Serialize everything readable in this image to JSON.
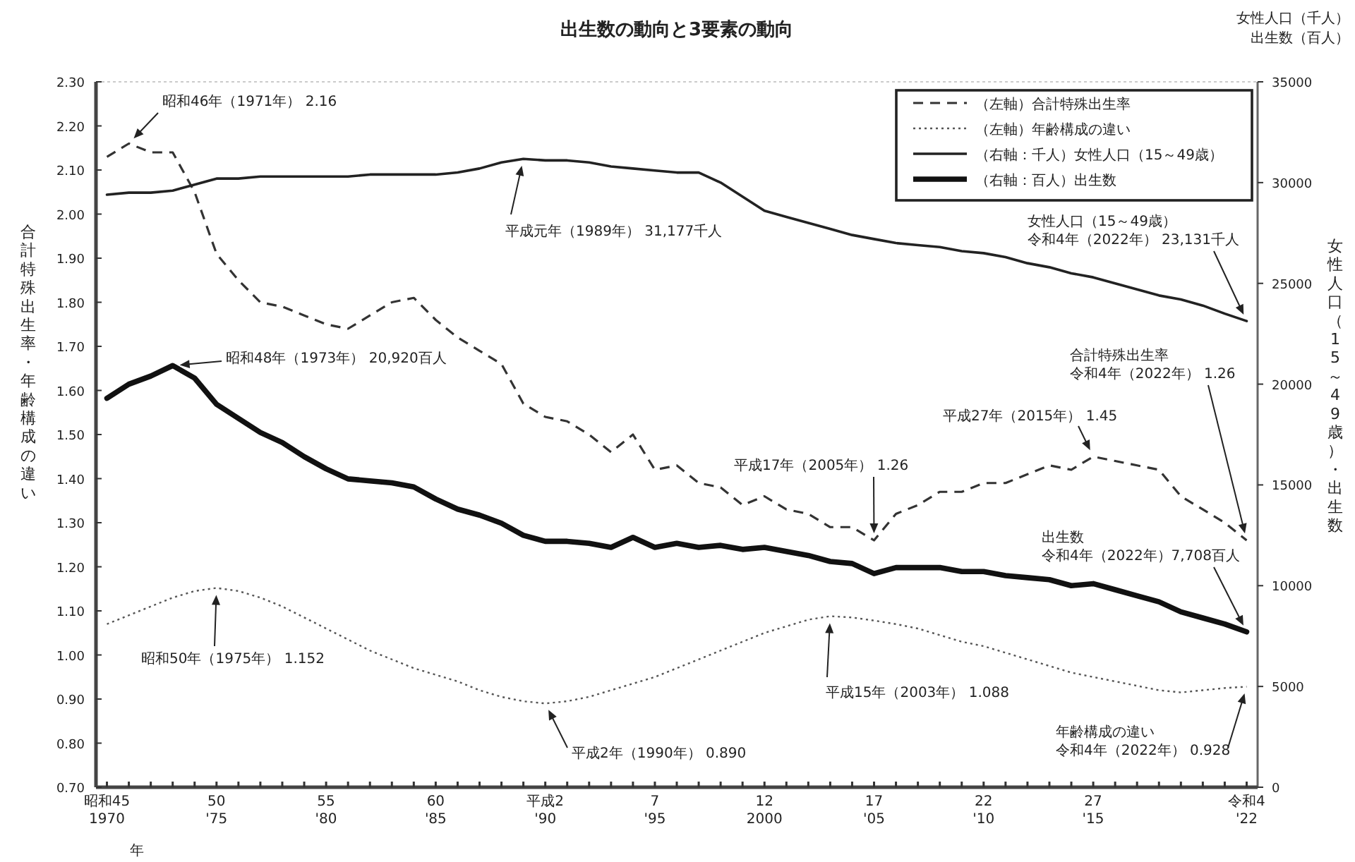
{
  "chart_data": {
    "type": "line",
    "title": "出生数の動向と3要素の動向",
    "ylabel": "合計特殊出生率・年齢構成の違い",
    "y2label": "女性人口（15～49歳）・出生数",
    "annotations": [
      "昭和46年（1971年） 2.16",
      "昭和48年（1973年） 20,920百人",
      "平成元年（1989年） 31,177千人",
      "女性人口（15～49歳）",
      "令和4年（2022年） 23,131千人",
      "合計特殊出生率",
      "令和4年（2022年） 1.26",
      "平成27年（2015年） 1.45",
      "平成17年（2005年） 1.26",
      "出生数",
      "令和4年（2022年）7,708百人",
      "昭和50年（1975年） 1.152",
      "平成2年（1990年） 0.890",
      "平成15年（2003年） 1.088",
      "年齢構成の違い",
      "令和4年（2022年） 0.928",
      "女性人口（千人）",
      "出生数（百人）",
      "年"
    ],
    "categories": [
      "昭和45\n1970",
      null,
      null,
      null,
      null,
      "50\n'75",
      null,
      null,
      null,
      null,
      "55\n'80",
      null,
      null,
      null,
      null,
      "60\n'85",
      null,
      null,
      null,
      null,
      "平成2\n'90",
      null,
      null,
      null,
      null,
      "7\n'95",
      null,
      null,
      null,
      null,
      "12\n2000",
      null,
      null,
      null,
      null,
      "17\n'05",
      null,
      null,
      null,
      null,
      "22\n'10",
      null,
      null,
      null,
      null,
      "27\n'15",
      null,
      null,
      null,
      null,
      null,
      null,
      "令和4\n'22"
    ],
    "ylim": [
      0.7,
      2.3
    ],
    "yticks": [
      {
        "value": 0.7,
        "label": "0.70"
      },
      {
        "value": 0.8,
        "label": "0.80"
      },
      {
        "value": 0.9,
        "label": "0.90"
      },
      {
        "value": 1.0,
        "label": "1.00"
      },
      {
        "value": 1.1,
        "label": "1.10"
      },
      {
        "value": 1.2,
        "label": "1.20"
      },
      {
        "value": 1.3,
        "label": "1.30"
      },
      {
        "value": 1.4,
        "label": "1.40"
      },
      {
        "value": 1.5,
        "label": "1.50"
      },
      {
        "value": 1.6,
        "label": "1.60"
      },
      {
        "value": 1.7,
        "label": "1.70"
      },
      {
        "value": 1.8,
        "label": "1.80"
      },
      {
        "value": 1.9,
        "label": "1.90"
      },
      {
        "value": 2.0,
        "label": "2.00"
      },
      {
        "value": 2.1,
        "label": "2.10"
      },
      {
        "value": 2.2,
        "label": "2.20"
      },
      {
        "value": 2.3,
        "label": "2.30"
      }
    ],
    "y2lim": [
      0,
      35000
    ],
    "y2ticks": [
      0,
      5000,
      10000,
      15000,
      20000,
      25000,
      30000,
      35000
    ],
    "grid": false,
    "legend": "top right",
    "marker": "none",
    "series": [
      {
        "name": "（左軸）合計特殊出生率",
        "color": "#333333",
        "line_style": "dashed",
        "values": [
          2.13,
          2.16,
          2.14,
          2.14,
          2.05,
          1.91,
          1.85,
          1.8,
          1.79,
          1.77,
          1.75,
          1.74,
          1.77,
          1.8,
          1.81,
          1.76,
          1.72,
          1.69,
          1.66,
          1.57,
          1.54,
          1.53,
          1.5,
          1.46,
          1.5,
          1.42,
          1.43,
          1.39,
          1.38,
          1.34,
          1.36,
          1.33,
          1.32,
          1.29,
          1.29,
          1.26,
          1.32,
          1.34,
          1.37,
          1.37,
          1.39,
          1.39,
          1.41,
          1.43,
          1.42,
          1.45,
          1.44,
          1.43,
          1.42,
          1.36,
          1.33,
          1.3,
          1.26
        ]
      },
      {
        "name": "（左軸）年齢構成の違い",
        "color": "#555555",
        "line_style": "dotted",
        "values": [
          1.07,
          1.09,
          1.11,
          1.13,
          1.145,
          1.152,
          1.145,
          1.13,
          1.11,
          1.085,
          1.06,
          1.035,
          1.01,
          0.99,
          0.97,
          0.955,
          0.94,
          0.92,
          0.905,
          0.895,
          0.89,
          0.895,
          0.905,
          0.92,
          0.935,
          0.95,
          0.97,
          0.99,
          1.01,
          1.03,
          1.05,
          1.065,
          1.08,
          1.088,
          1.085,
          1.078,
          1.07,
          1.06,
          1.045,
          1.03,
          1.02,
          1.005,
          0.99,
          0.975,
          0.96,
          0.95,
          0.94,
          0.93,
          0.92,
          0.915,
          0.92,
          0.925,
          0.928
        ]
      },
      {
        "name": "（右軸：千人）女性人口（15～49歳）",
        "color": "#222222",
        "line_style": "solid",
        "axis": "y2",
        "values": [
          29400,
          29500,
          29500,
          29600,
          29900,
          30200,
          30200,
          30300,
          30300,
          30300,
          30300,
          30300,
          30400,
          30400,
          30400,
          30400,
          30500,
          30700,
          31000,
          31177,
          31100,
          31100,
          31000,
          30800,
          30700,
          30600,
          30500,
          30500,
          30000,
          29300,
          28600,
          28300,
          28000,
          27700,
          27400,
          27200,
          27000,
          26900,
          26800,
          26600,
          26500,
          26300,
          26000,
          25800,
          25500,
          25300,
          25000,
          24700,
          24400,
          24200,
          23900,
          23500,
          23131
        ]
      },
      {
        "name": "（右軸：百人）出生数",
        "color": "#111111",
        "line_style": "solid",
        "axis": "y2",
        "values": [
          19300,
          20000,
          20400,
          20920,
          20300,
          19000,
          18300,
          17600,
          17100,
          16400,
          15800,
          15300,
          15200,
          15100,
          14900,
          14300,
          13800,
          13500,
          13100,
          12500,
          12200,
          12200,
          12100,
          11900,
          12400,
          11900,
          12100,
          11900,
          12000,
          11800,
          11900,
          11700,
          11500,
          11200,
          11100,
          10600,
          10900,
          10900,
          10900,
          10700,
          10700,
          10500,
          10400,
          10300,
          10000,
          10100,
          9800,
          9500,
          9200,
          8700,
          8400,
          8100,
          7708
        ]
      }
    ]
  }
}
